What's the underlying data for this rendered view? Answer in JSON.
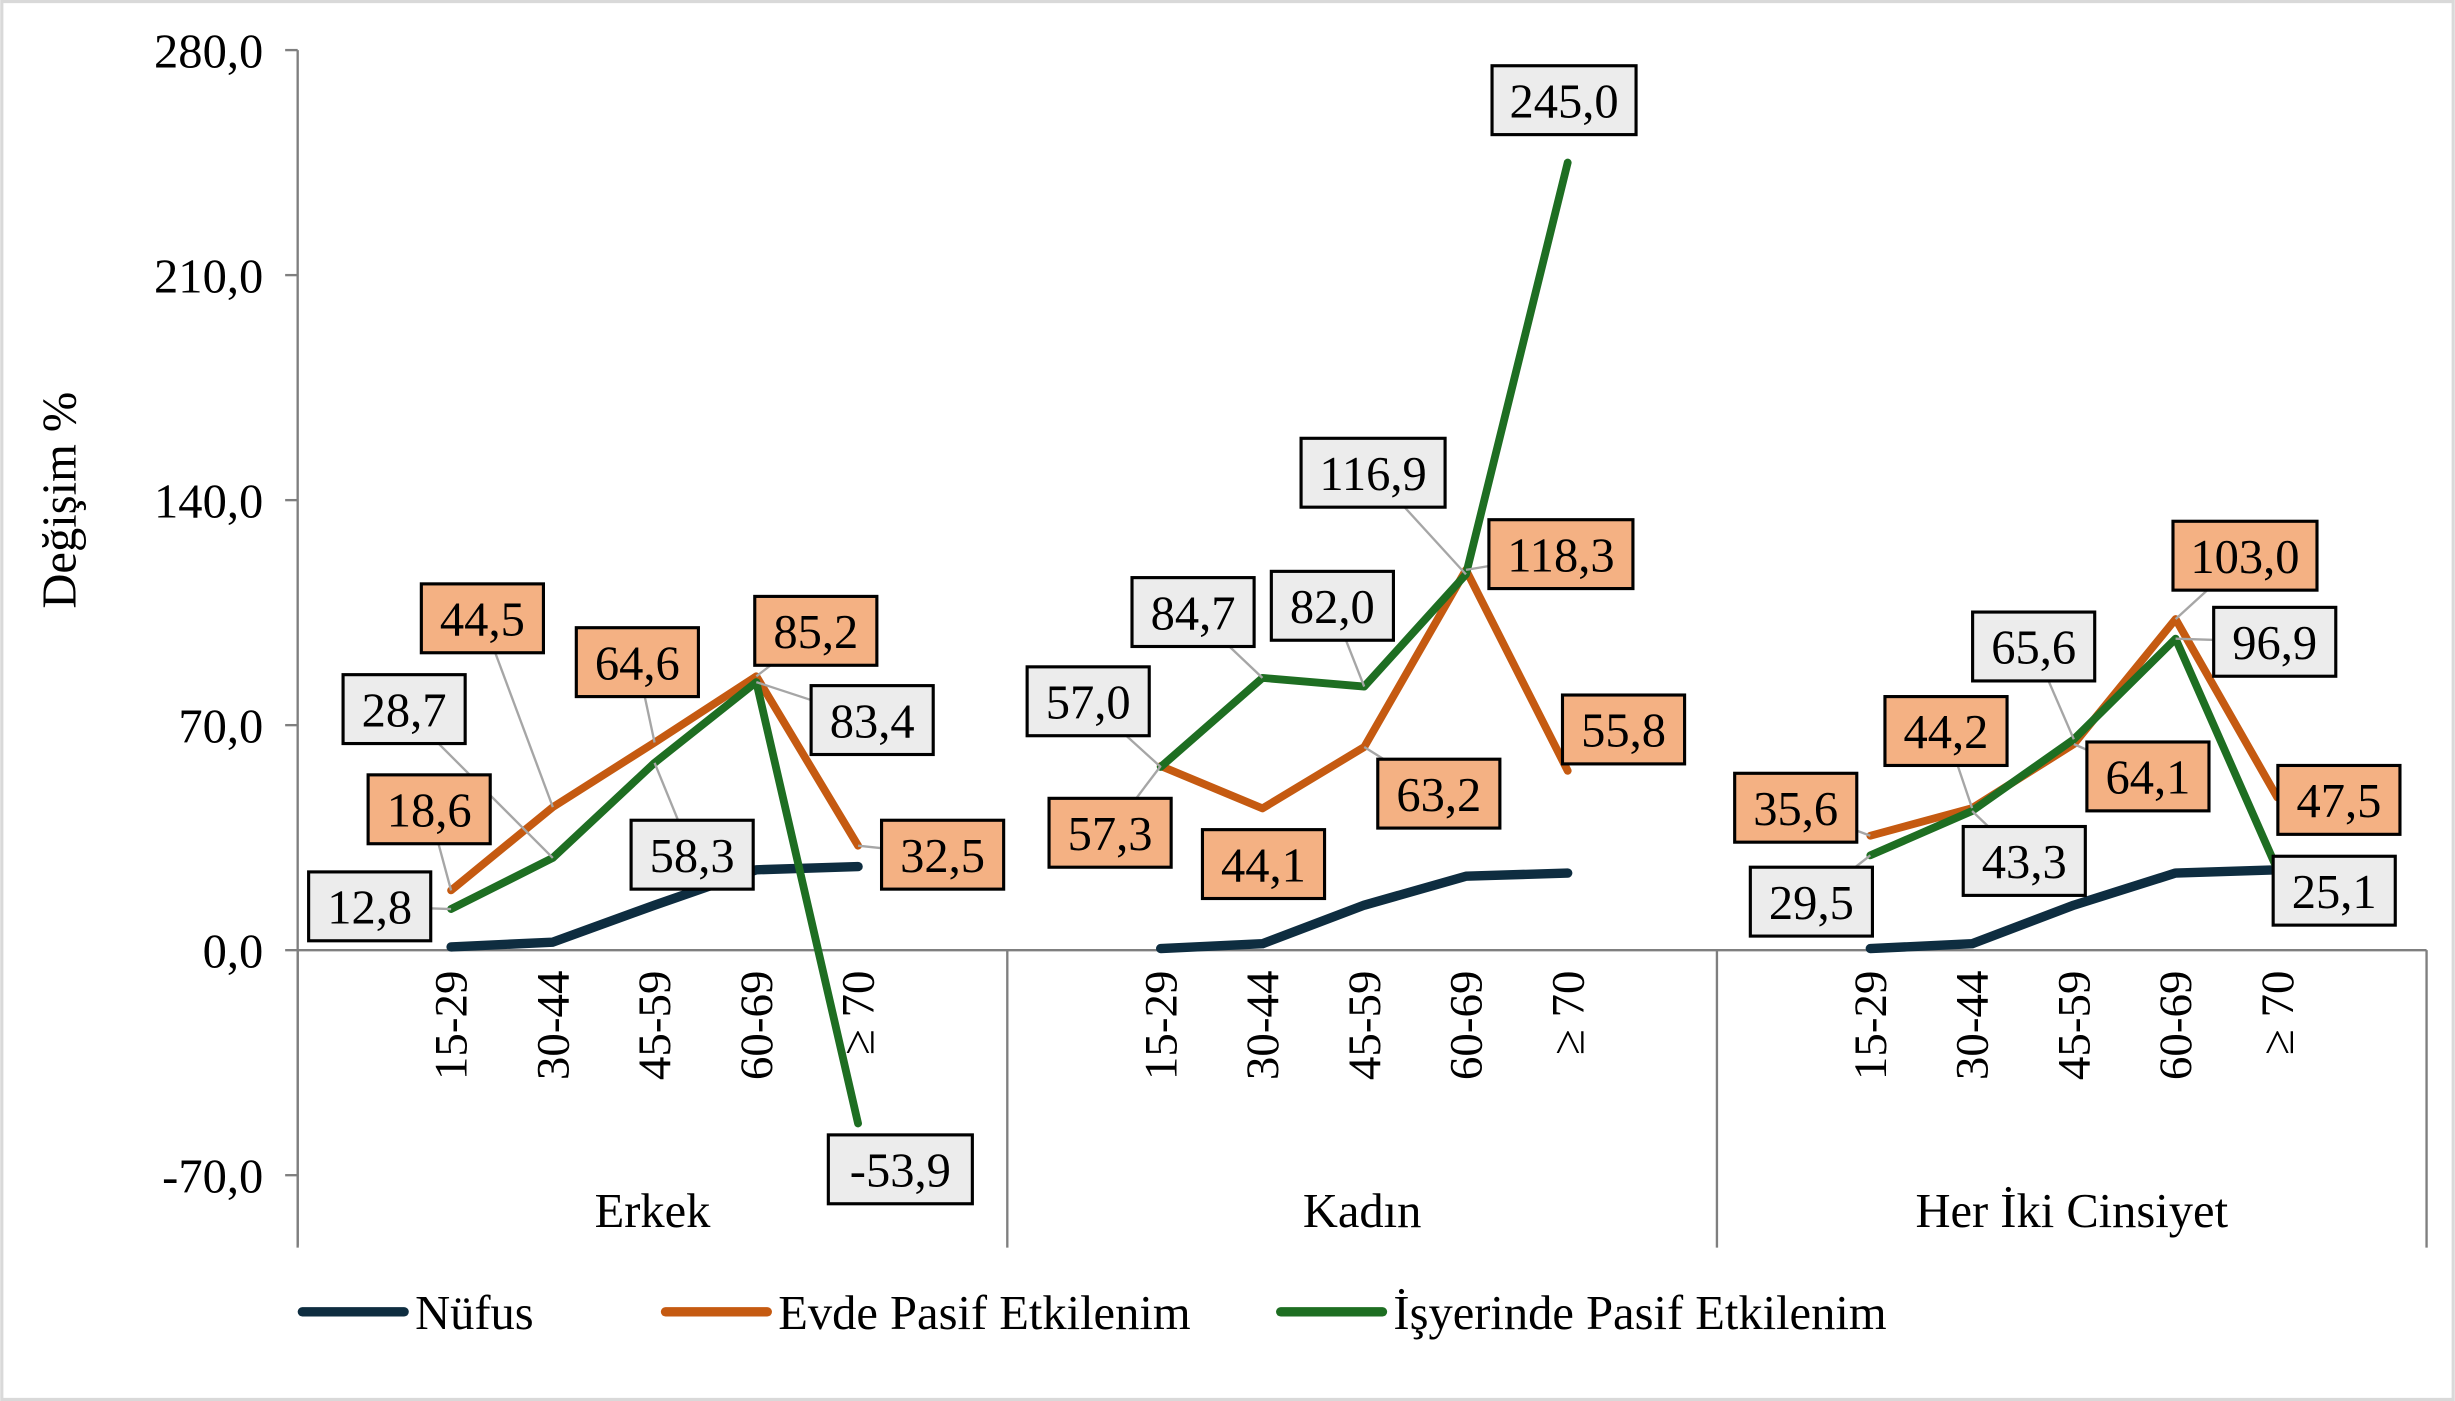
{
  "chart_data": {
    "type": "line",
    "ylabel": "Değişim %",
    "ylim": [
      -70,
      280
    ],
    "yticks": [
      -70,
      0,
      70,
      140,
      210,
      280
    ],
    "ytick_labels": [
      "-70,0",
      "0,0",
      "70,0",
      "140,0",
      "210,0",
      "280,0"
    ],
    "grid": false,
    "legend_position": "bottom",
    "categories": [
      "15-29",
      "30-44",
      "45-59",
      "60-69",
      "≥ 70"
    ],
    "groups": [
      {
        "name": "Erkek",
        "series": [
          {
            "name": "Nüfus",
            "values": [
              1.0,
              2.5,
              14.0,
              25.0,
              26.0
            ]
          },
          {
            "name": "Evde Pasif Etkilenim",
            "values": [
              18.6,
              44.5,
              64.6,
              85.2,
              32.5
            ],
            "labels": [
              "18,6",
              "44,5",
              "64,6",
              "85,2",
              "32,5"
            ]
          },
          {
            "name": "İşyerinde Pasif Etkilenim",
            "values": [
              12.8,
              28.7,
              58.3,
              83.4,
              -53.9
            ],
            "labels": [
              "12,8",
              "28,7",
              "58,3",
              "83,4",
              "-53,9"
            ]
          }
        ]
      },
      {
        "name": "Kadın",
        "series": [
          {
            "name": "Nüfus",
            "values": [
              0.5,
              2.0,
              14.0,
              23.0,
              24.0
            ]
          },
          {
            "name": "Evde Pasif Etkilenim",
            "values": [
              57.3,
              44.1,
              63.2,
              118.3,
              55.8
            ],
            "labels": [
              "57,3",
              "44,1",
              "63,2",
              "118,3",
              "55,8"
            ]
          },
          {
            "name": "İşyerinde Pasif Etkilenim",
            "values": [
              57.0,
              84.7,
              82.0,
              116.9,
              245.0
            ],
            "labels": [
              "57,0",
              "84,7",
              "82,0",
              "116,9",
              "245,0"
            ]
          }
        ]
      },
      {
        "name": "Her İki Cinsiyet",
        "series": [
          {
            "name": "Nüfus",
            "values": [
              0.5,
              2.0,
              14.0,
              24.0,
              25.0
            ]
          },
          {
            "name": "Evde Pasif Etkilenim",
            "values": [
              35.6,
              44.2,
              64.1,
              103.0,
              47.5
            ],
            "labels": [
              "35,6",
              "44,2",
              "64,1",
              "103,0",
              "47,5"
            ]
          },
          {
            "name": "İşyerinde Pasif Etkilenim",
            "values": [
              29.5,
              43.3,
              65.6,
              96.9,
              25.1
            ],
            "labels": [
              "29,5",
              "43,3",
              "65,6",
              "96,9",
              "25,1"
            ]
          }
        ]
      }
    ],
    "legend": [
      "Nüfus",
      "Evde Pasif Etkilenim",
      "İşyerinde Pasif Etkilenim"
    ],
    "colors": {
      "Nüfus": "#0e2d40",
      "Evde Pasif Etkilenim": "#c55a11",
      "İşyerinde Pasif Etkilenim": "#1e6e22",
      "label_fill_evde": "#f4b183",
      "label_fill_isyeri": "#ececec"
    }
  }
}
